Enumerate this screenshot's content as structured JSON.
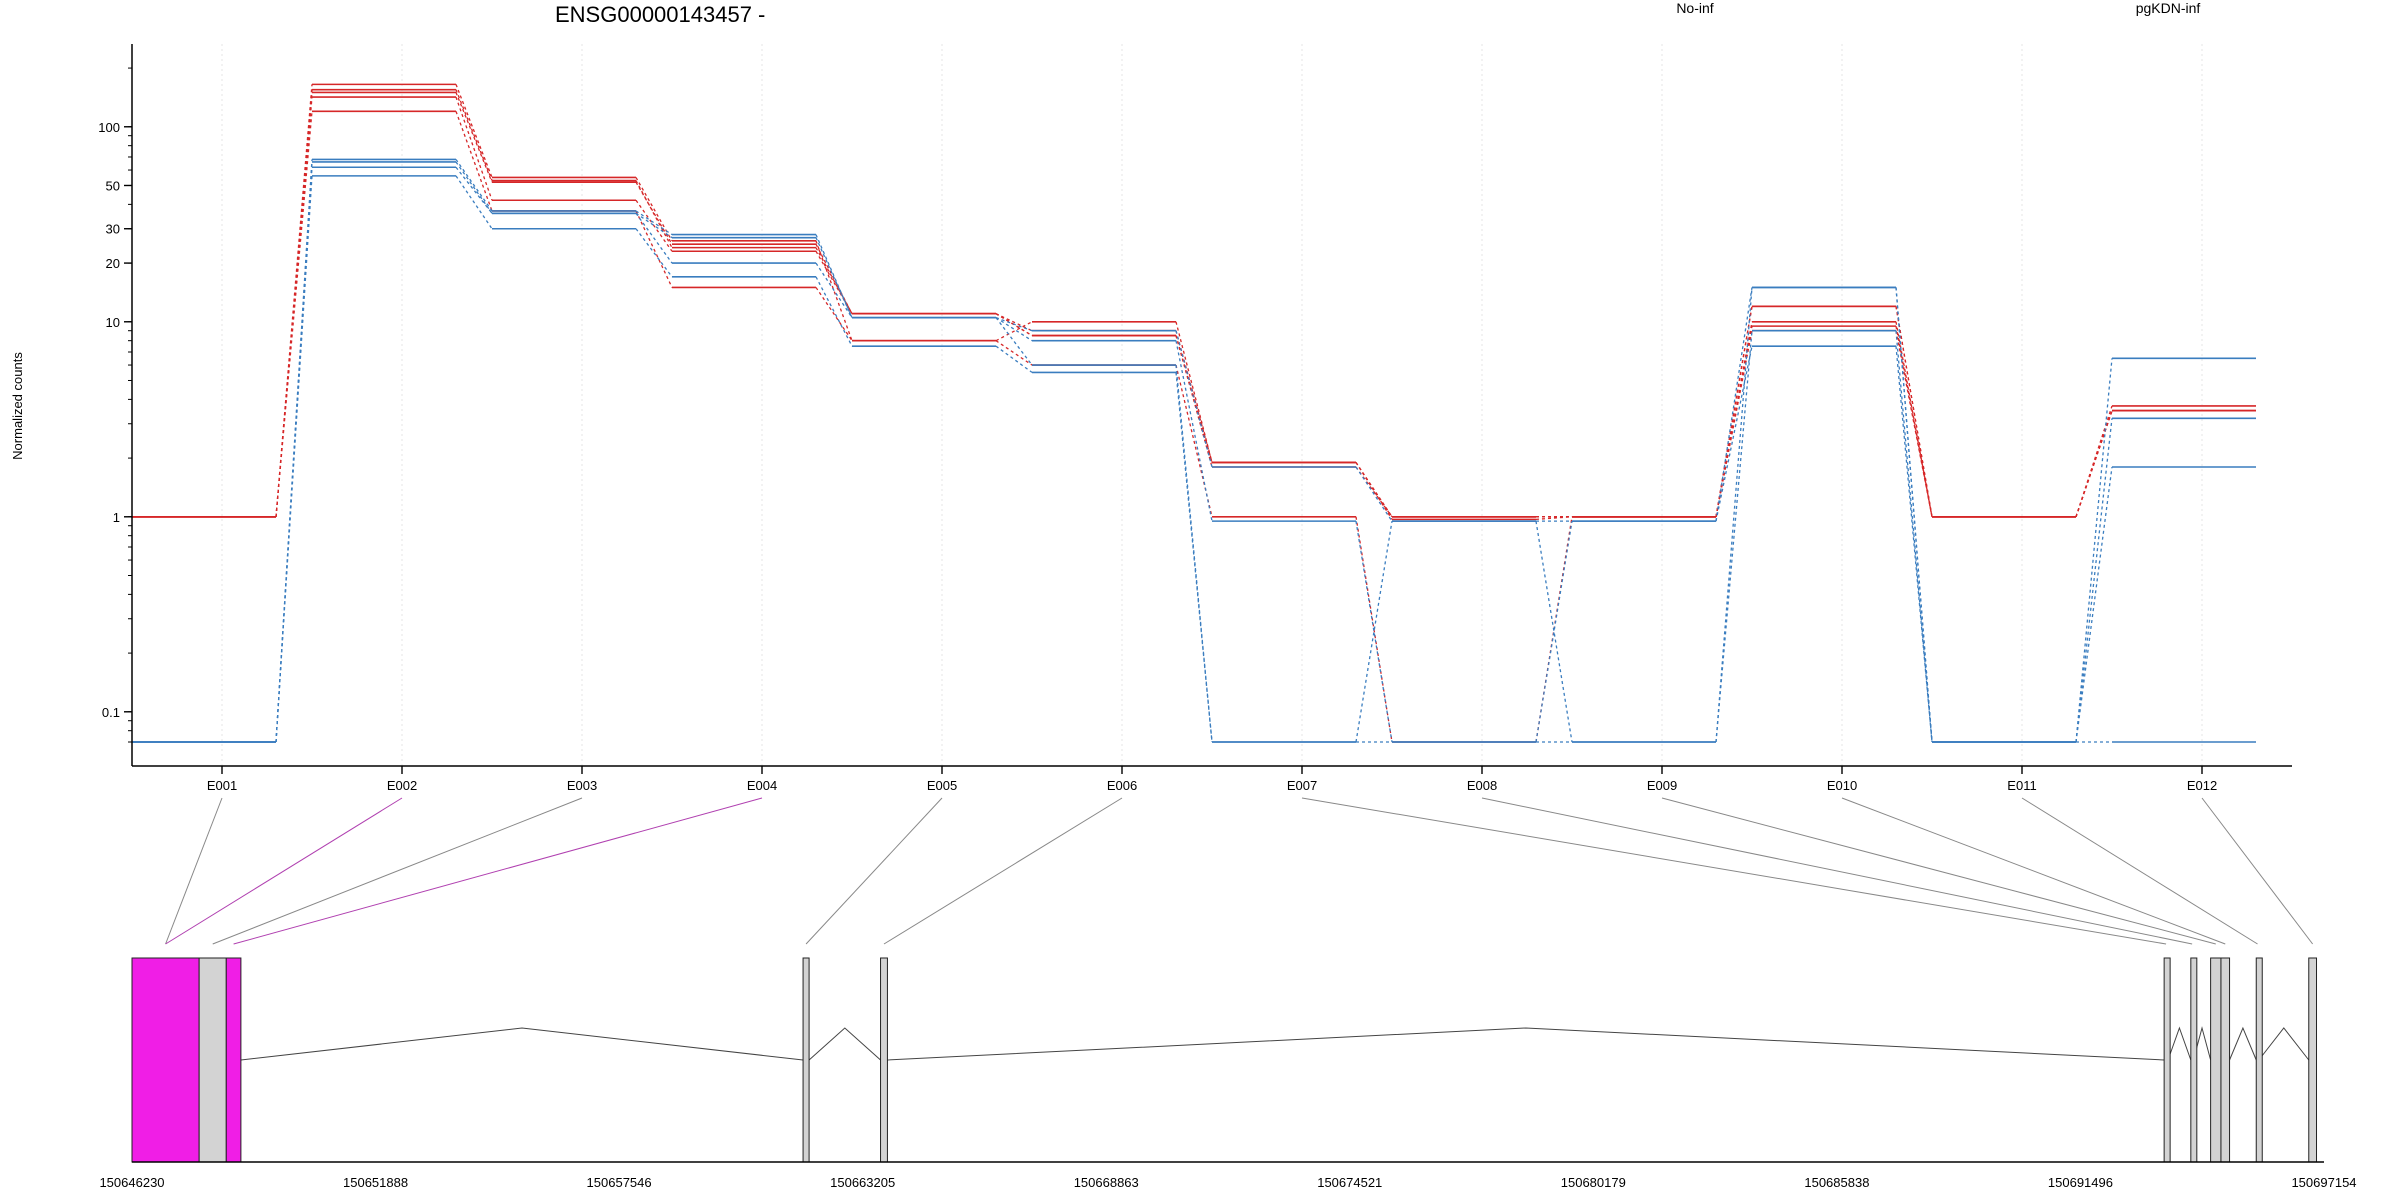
{
  "chart_data": {
    "type": "line",
    "title": "ENSG00000143457 -",
    "ylabel": "Normalized counts",
    "xlabel": "",
    "y_scale": "log",
    "ylim": [
      0.07,
      220
    ],
    "y_ticks": [
      0.1,
      1,
      10,
      20,
      30,
      50,
      100
    ],
    "y_tick_labels": [
      "0.1",
      "1",
      "10",
      "20",
      "30",
      "50",
      "100"
    ],
    "categories": [
      "E001",
      "E002",
      "E003",
      "E004",
      "E005",
      "E006",
      "E007",
      "E008",
      "E009",
      "E010",
      "E011",
      "E012"
    ],
    "legend": [
      {
        "name": "No-inf",
        "color": "#d62728"
      },
      {
        "name": "pgKDN-inf",
        "color": "#3a7dbf"
      }
    ],
    "legend_position": "top",
    "grid": true,
    "series": [
      {
        "group": "No-inf",
        "color": "#d62728",
        "values": [
          1,
          165,
          55,
          26,
          8,
          10,
          1.9,
          1,
          1,
          12,
          1,
          3.7
        ]
      },
      {
        "group": "No-inf",
        "color": "#d62728",
        "values": [
          1,
          155,
          53,
          24,
          11,
          9,
          1.9,
          0.97,
          1,
          10,
          1,
          3.5
        ]
      },
      {
        "group": "No-inf",
        "color": "#d62728",
        "values": [
          1,
          142,
          42,
          23,
          11,
          8.5,
          1.8,
          1,
          1,
          9.5,
          1,
          3.5
        ]
      },
      {
        "group": "No-inf",
        "color": "#d62728",
        "values": [
          1,
          120,
          37,
          15,
          8,
          6,
          1,
          0.07,
          1,
          9,
          1,
          3.5
        ]
      },
      {
        "group": "No-inf",
        "color": "#d62728",
        "values": [
          1,
          150,
          52,
          25,
          11,
          8.5,
          1.9,
          1,
          1,
          12,
          1,
          3.5
        ]
      },
      {
        "group": "pgKDN-inf",
        "color": "#3a7dbf",
        "values": [
          0.07,
          68,
          37,
          28,
          10.5,
          9,
          1.8,
          0.95,
          0.95,
          15,
          0.07,
          6.5
        ]
      },
      {
        "group": "pgKDN-inf",
        "color": "#3a7dbf",
        "values": [
          0.07,
          66,
          36,
          27,
          10.5,
          8,
          0.95,
          0.07,
          0.07,
          15,
          0.07,
          3.2
        ]
      },
      {
        "group": "pgKDN-inf",
        "color": "#3a7dbf",
        "values": [
          0.07,
          62,
          36,
          20,
          10.5,
          6,
          0.07,
          0.95,
          0.07,
          9,
          0.07,
          1.8
        ]
      },
      {
        "group": "pgKDN-inf",
        "color": "#3a7dbf",
        "values": [
          0.07,
          56,
          30,
          17,
          7.5,
          5.5,
          0.07,
          0.07,
          0.95,
          7.5,
          0.07,
          0.07
        ]
      }
    ],
    "gene_model": {
      "x_ticks": [
        150646230,
        150651888,
        150657546,
        150663205,
        150668863,
        150674521,
        150680179,
        150685838,
        150691496,
        150697154
      ],
      "x_tick_labels": [
        "150646230",
        "150651888",
        "150657546",
        "150663205",
        "150668863",
        "150674521",
        "150680179",
        "150685838",
        "150691496",
        "150697154"
      ],
      "range": [
        150646230,
        150697154
      ],
      "highlight_color": "#f01ee6",
      "exon_color": "#d3d3d3",
      "exons": [
        {
          "id": "E001",
          "start": 150646230,
          "end": 150647790,
          "highlighted": true
        },
        {
          "id": "E002",
          "start": 150646230,
          "end": 150647790,
          "highlighted": true
        },
        {
          "id": "E003",
          "start": 150647790,
          "end": 150648420,
          "highlighted": false
        },
        {
          "id": "E004",
          "start": 150648420,
          "end": 150648760,
          "highlighted": true
        },
        {
          "id": "E005",
          "start": 150661820,
          "end": 150661960,
          "highlighted": false
        },
        {
          "id": "E006",
          "start": 150663620,
          "end": 150663780,
          "highlighted": false
        },
        {
          "id": "E007",
          "start": 150693440,
          "end": 150693530,
          "highlighted": false
        },
        {
          "id": "E008",
          "start": 150694060,
          "end": 150694120,
          "highlighted": false
        },
        {
          "id": "E009",
          "start": 150694520,
          "end": 150694760,
          "highlighted": false
        },
        {
          "id": "E010",
          "start": 150694760,
          "end": 150694960,
          "highlighted": false
        },
        {
          "id": "E011",
          "start": 150695580,
          "end": 150695640,
          "highlighted": false
        },
        {
          "id": "E012",
          "start": 150696800,
          "end": 150696980,
          "highlighted": false
        }
      ]
    }
  }
}
